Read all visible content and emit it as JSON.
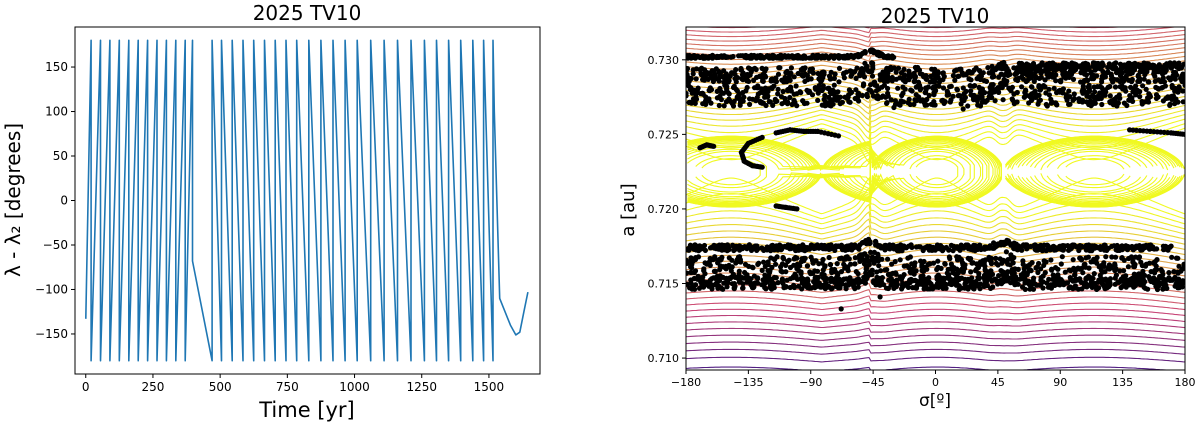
{
  "colors": {
    "line": "#1f77b4",
    "points": "#000000",
    "contour_low": "#0d0887",
    "contour_mid": "#cc4778",
    "contour_high": "#f0f921"
  },
  "chart_data": [
    {
      "type": "line",
      "title": "2025 TV10",
      "xlabel": "Time [yr]",
      "ylabel": "λ - λ₂ [degrees]",
      "xlim": [
        -40,
        1690
      ],
      "ylim": [
        -195,
        195
      ],
      "xticks": [
        0,
        250,
        500,
        750,
        1000,
        1250,
        1500
      ],
      "yticks": [
        -150,
        -100,
        -50,
        0,
        50,
        100,
        150
      ],
      "series": [
        {
          "cycles": [
            {
              "t0": 0,
              "t1": 20,
              "y0": -133
            },
            {
              "t0": 20,
              "t1": 55
            },
            {
              "t0": 55,
              "t1": 90
            },
            {
              "t0": 90,
              "t1": 125
            },
            {
              "t0": 125,
              "t1": 160
            },
            {
              "t0": 160,
              "t1": 195
            },
            {
              "t0": 195,
              "t1": 230
            },
            {
              "t0": 230,
              "t1": 265
            },
            {
              "t0": 265,
              "t1": 300
            },
            {
              "t0": 300,
              "t1": 335
            },
            {
              "t0": 335,
              "t1": 370
            },
            {
              "t0": 370,
              "t1": 397
            },
            {
              "t0": 397,
              "t1": 470,
              "y0": -68,
              "sweep": "down"
            },
            {
              "t0": 470,
              "t1": 505,
              "sweep": "down"
            },
            {
              "t0": 505,
              "t1": 545,
              "sweep": "down"
            },
            {
              "t0": 545,
              "t1": 585,
              "sweep": "down"
            },
            {
              "t0": 585,
              "t1": 625,
              "sweep": "down"
            },
            {
              "t0": 625,
              "t1": 665,
              "sweep": "down"
            },
            {
              "t0": 665,
              "t1": 705,
              "sweep": "down"
            },
            {
              "t0": 705,
              "t1": 745,
              "sweep": "down"
            },
            {
              "t0": 745,
              "t1": 785,
              "sweep": "down"
            },
            {
              "t0": 785,
              "t1": 830,
              "sweep": "down"
            },
            {
              "t0": 830,
              "t1": 875,
              "sweep": "down"
            },
            {
              "t0": 875,
              "t1": 920,
              "sweep": "down"
            },
            {
              "t0": 920,
              "t1": 965,
              "sweep": "down"
            },
            {
              "t0": 965,
              "t1": 1010,
              "sweep": "down"
            },
            {
              "t0": 1010,
              "t1": 1060,
              "sweep": "down"
            },
            {
              "t0": 1060,
              "t1": 1110,
              "sweep": "down"
            },
            {
              "t0": 1110,
              "t1": 1160,
              "sweep": "down"
            },
            {
              "t0": 1160,
              "t1": 1210,
              "sweep": "down"
            },
            {
              "t0": 1210,
              "t1": 1260,
              "sweep": "down"
            },
            {
              "t0": 1260,
              "t1": 1305,
              "sweep": "down"
            },
            {
              "t0": 1305,
              "t1": 1350,
              "sweep": "down"
            },
            {
              "t0": 1350,
              "t1": 1395,
              "sweep": "down"
            },
            {
              "t0": 1395,
              "t1": 1440,
              "sweep": "down"
            },
            {
              "t0": 1440,
              "t1": 1480,
              "sweep": "down"
            },
            {
              "t0": 1480,
              "t1": 1515,
              "sweep": "down"
            }
          ],
          "tail": [
            [
              1515,
              180
            ],
            [
              1520,
              100
            ],
            [
              1540,
              -110
            ],
            [
              1580,
              -140
            ],
            [
              1600,
              -151
            ],
            [
              1615,
              -148
            ],
            [
              1630,
              -125
            ],
            [
              1645,
              -103
            ]
          ]
        }
      ]
    },
    {
      "type": "contour_scatter",
      "title": "2025 TV10",
      "xlabel": "σ[º]",
      "ylabel": "a [au]",
      "xlim": [
        -180,
        180
      ],
      "ylim": [
        0.7092,
        0.7322
      ],
      "xticks": [
        -180,
        -135,
        -90,
        -45,
        0,
        45,
        90,
        135,
        180
      ],
      "xtick_labels": [
        "−180",
        "−135",
        "−90",
        "−45",
        "0",
        "45",
        "90",
        "135",
        "180"
      ],
      "yticks": [
        0.71,
        0.715,
        0.72,
        0.725,
        0.73
      ],
      "ytick_labels": [
        "0.710",
        "0.715",
        "0.720",
        "0.725",
        "0.730"
      ],
      "resonance": {
        "a0": 0.7225,
        "half_width": 0.0028,
        "cusps": [
          -47,
          49
        ]
      },
      "contour_count": 70,
      "bands": [
        {
          "x0": -180,
          "x1": 180,
          "a_center": 0.729,
          "spread": 0.0005
        },
        {
          "x0": -180,
          "x1": 180,
          "a_center": 0.7276,
          "spread": 0.0007
        },
        {
          "x0": -180,
          "x1": -30,
          "a_center": 0.7302,
          "spread": 0.0001
        },
        {
          "x0": 60,
          "x1": 180,
          "a_center": 0.7296,
          "spread": 0.0002
        },
        {
          "x0": -180,
          "x1": 180,
          "a_center": 0.716,
          "spread": 0.0008
        },
        {
          "x0": -180,
          "x1": 180,
          "a_center": 0.715,
          "spread": 0.0004
        },
        {
          "x0": -180,
          "x1": 170,
          "a_center": 0.7174,
          "spread": 0.0002
        }
      ],
      "traces": [
        [
          [
            -115,
            0.7251
          ],
          [
            -105,
            0.7253
          ],
          [
            -95,
            0.7252
          ],
          [
            -85,
            0.7252
          ],
          [
            -70,
            0.7249
          ]
        ],
        [
          [
            -125,
            0.7248
          ],
          [
            -135,
            0.7244
          ],
          [
            -140,
            0.7238
          ],
          [
            -138,
            0.7232
          ],
          [
            -132,
            0.7229
          ],
          [
            -125,
            0.7228
          ]
        ],
        [
          [
            -170,
            0.7241
          ],
          [
            -165,
            0.7243
          ],
          [
            -160,
            0.7242
          ]
        ],
        [
          [
            140,
            0.7253
          ],
          [
            155,
            0.7252
          ],
          [
            170,
            0.7251
          ],
          [
            180,
            0.725
          ]
        ],
        [
          [
            -115,
            0.7202
          ],
          [
            -108,
            0.7201
          ],
          [
            -100,
            0.72
          ]
        ]
      ],
      "scatter_points": [
        [
          -68,
          0.7133
        ],
        [
          -40,
          0.7141
        ],
        [
          55,
          0.7158
        ],
        [
          20,
          0.7267
        ],
        [
          -30,
          0.7268
        ],
        [
          120,
          0.727
        ]
      ]
    }
  ]
}
